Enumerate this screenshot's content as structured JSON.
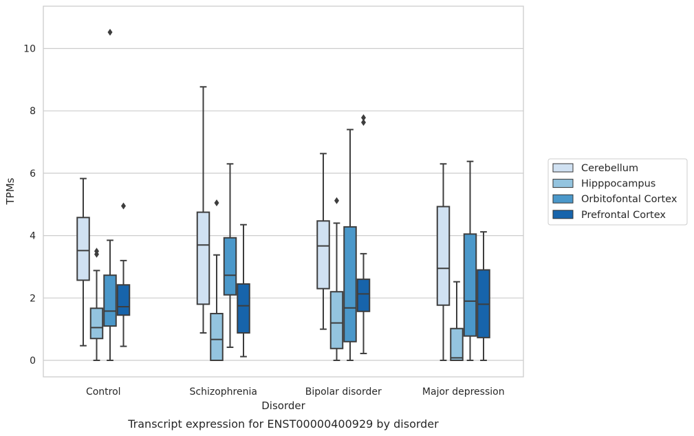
{
  "chart_data": {
    "type": "box",
    "xlabel": "Disorder",
    "ylabel": "TPMs",
    "caption": "Transcript expression for ENST00000400929 by disorder",
    "ylim": [
      -0.5,
      11.35
    ],
    "yticks": [
      0,
      2,
      4,
      6,
      8,
      10
    ],
    "grid": "horizontal",
    "legend_position": "right",
    "categories": [
      "Control",
      "Schizophrenia",
      "Bipolar disorder",
      "Major depression"
    ],
    "series": [
      {
        "name": "Cerebellum",
        "color": "#d0e1f2",
        "boxes": [
          {
            "whisker_low": 0.47,
            "q1": 2.57,
            "median": 3.52,
            "q3": 4.58,
            "whisker_high": 5.83,
            "outliers": []
          },
          {
            "whisker_low": 0.88,
            "q1": 1.8,
            "median": 3.7,
            "q3": 4.75,
            "whisker_high": 8.77,
            "outliers": []
          },
          {
            "whisker_low": 1.0,
            "q1": 2.3,
            "median": 3.67,
            "q3": 4.47,
            "whisker_high": 6.63,
            "outliers": []
          },
          {
            "whisker_low": 0.0,
            "q1": 1.77,
            "median": 2.95,
            "q3": 4.93,
            "whisker_high": 6.3,
            "outliers": []
          }
        ]
      },
      {
        "name": "Hipppocampus",
        "color": "#94c4df",
        "boxes": [
          {
            "whisker_low": 0.0,
            "q1": 0.7,
            "median": 1.05,
            "q3": 1.67,
            "whisker_high": 2.88,
            "outliers": [
              3.4,
              3.5
            ]
          },
          {
            "whisker_low": 0.0,
            "q1": 0.0,
            "median": 0.67,
            "q3": 1.5,
            "whisker_high": 3.38,
            "outliers": [
              5.05
            ]
          },
          {
            "whisker_low": 0.0,
            "q1": 0.38,
            "median": 1.2,
            "q3": 2.2,
            "whisker_high": 4.4,
            "outliers": [
              5.12
            ]
          },
          {
            "whisker_low": 0.0,
            "q1": 0.0,
            "median": 0.08,
            "q3": 1.02,
            "whisker_high": 2.52,
            "outliers": []
          }
        ]
      },
      {
        "name": "Orbitofontal Cortex",
        "color": "#4b98ca",
        "boxes": [
          {
            "whisker_low": 0.0,
            "q1": 1.1,
            "median": 1.58,
            "q3": 2.73,
            "whisker_high": 3.85,
            "outliers": [
              10.52
            ]
          },
          {
            "whisker_low": 0.42,
            "q1": 2.1,
            "median": 2.73,
            "q3": 3.93,
            "whisker_high": 6.3,
            "outliers": []
          },
          {
            "whisker_low": 0.0,
            "q1": 0.6,
            "median": 1.68,
            "q3": 4.28,
            "whisker_high": 7.4,
            "outliers": []
          },
          {
            "whisker_low": 0.0,
            "q1": 0.78,
            "median": 1.9,
            "q3": 4.05,
            "whisker_high": 6.38,
            "outliers": []
          }
        ]
      },
      {
        "name": "Prefrontal Cortex",
        "color": "#1764ab",
        "boxes": [
          {
            "whisker_low": 0.45,
            "q1": 1.45,
            "median": 1.72,
            "q3": 2.42,
            "whisker_high": 3.2,
            "outliers": [
              4.95
            ]
          },
          {
            "whisker_low": 0.12,
            "q1": 0.88,
            "median": 1.75,
            "q3": 2.45,
            "whisker_high": 4.35,
            "outliers": []
          },
          {
            "whisker_low": 0.22,
            "q1": 1.57,
            "median": 2.13,
            "q3": 2.6,
            "whisker_high": 3.42,
            "outliers": [
              7.63,
              7.78
            ]
          },
          {
            "whisker_low": 0.0,
            "q1": 0.73,
            "median": 1.8,
            "q3": 2.9,
            "whisker_high": 4.12,
            "outliers": []
          }
        ]
      }
    ]
  }
}
